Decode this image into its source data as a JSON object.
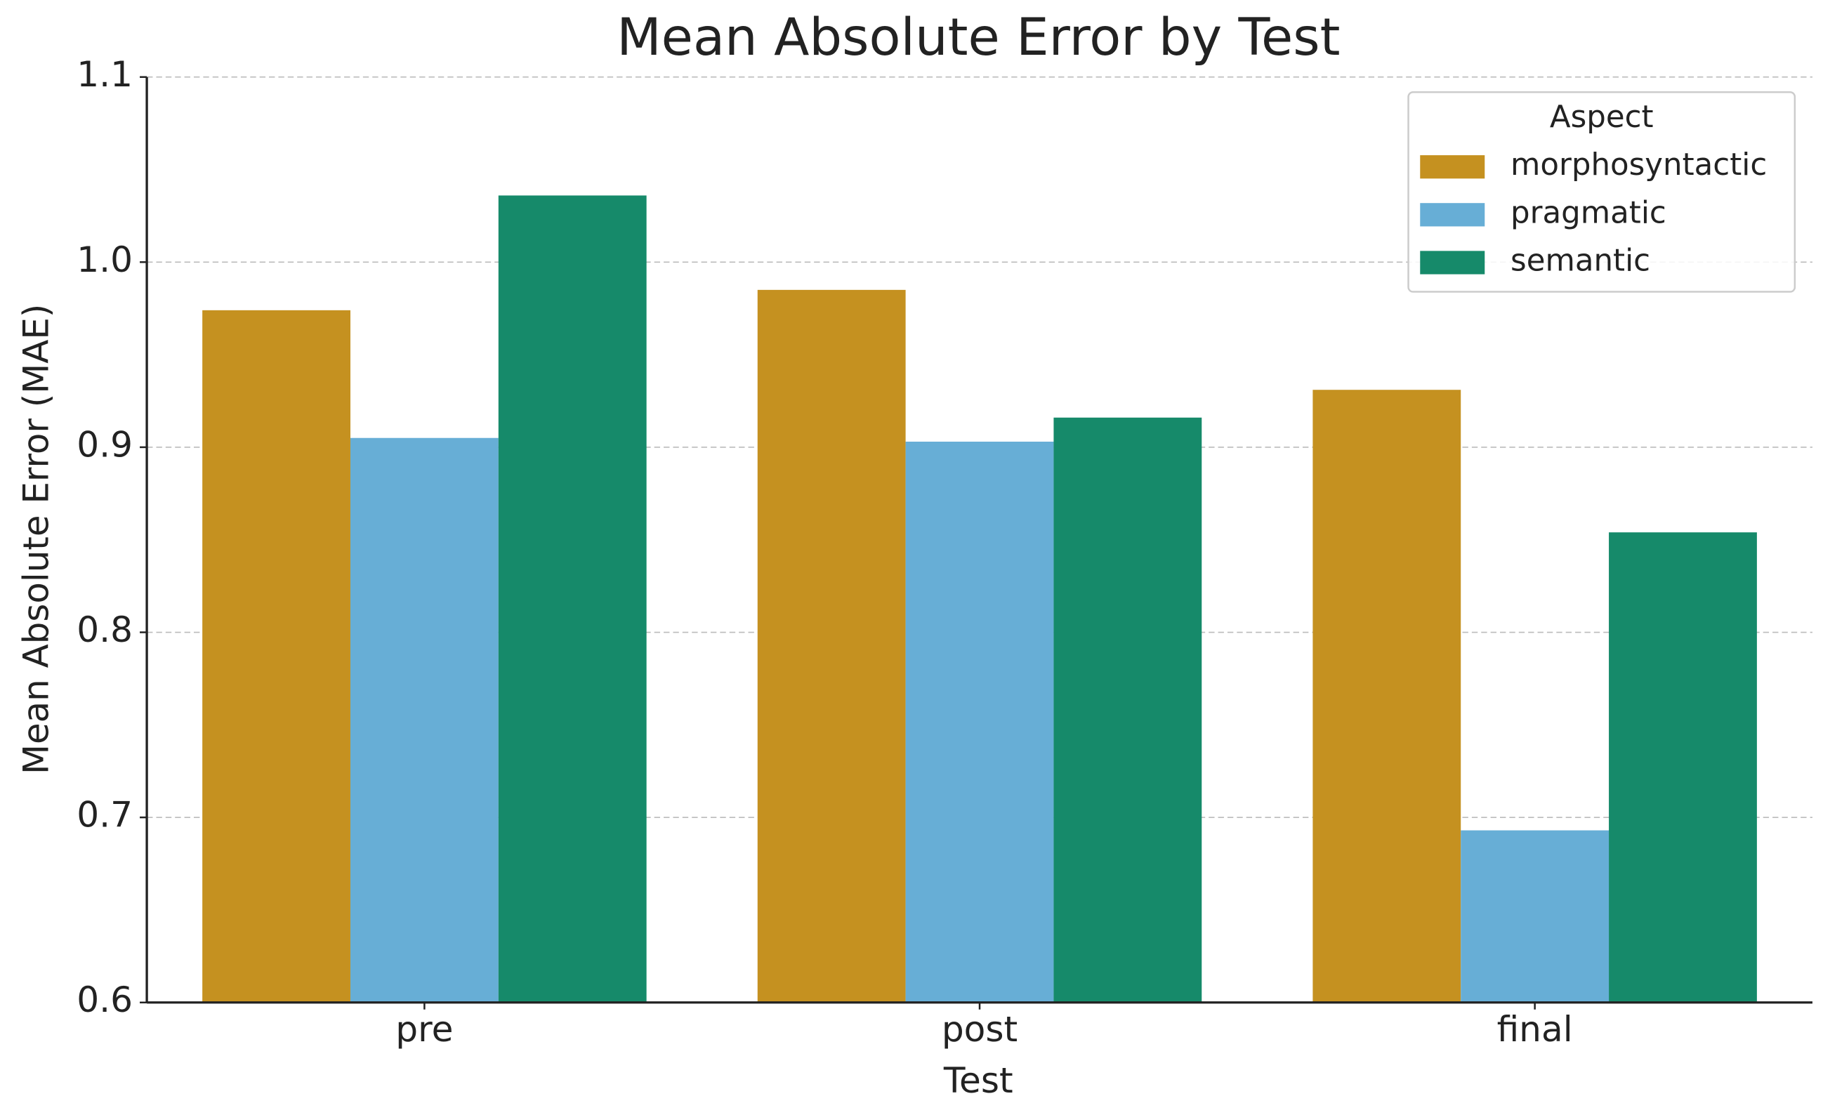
{
  "chart_data": {
    "type": "bar",
    "title": "Mean Absolute Error by Test",
    "x_label": "Test",
    "y_label": "Mean Absolute Error (MAE)",
    "categories": [
      "pre",
      "post",
      "final"
    ],
    "series": [
      {
        "name": "morphosyntactic",
        "color": "#c59120",
        "values": [
          0.974,
          0.985,
          0.931
        ]
      },
      {
        "name": "pragmatic",
        "color": "#67aed6",
        "values": [
          0.905,
          0.903,
          0.693
        ]
      },
      {
        "name": "semantic",
        "color": "#168a6a",
        "values": [
          1.036,
          0.916,
          0.854
        ]
      }
    ],
    "legend_title": "Aspect",
    "legend_position": "upper right",
    "ylim": [
      0.6,
      1.1
    ],
    "yticks": [
      0.6,
      0.7,
      0.8,
      0.9,
      {
        "value": 1,
        "label": "1.0"
      },
      1.1
    ],
    "grid": true
  }
}
